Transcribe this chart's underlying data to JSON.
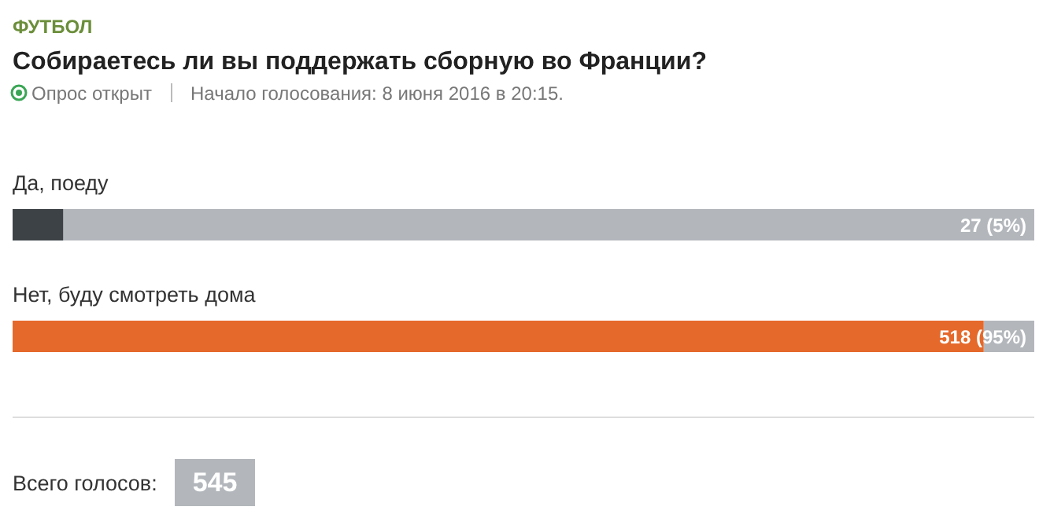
{
  "chart_data": {
    "type": "bar",
    "orientation": "horizontal",
    "title": "Собираетесь ли вы поддержать сборную во Франции?",
    "subtitle": "Опрос открыт",
    "annotations": [
      "ФУТБОЛ",
      "Начало голосования: 8 июня 2016 в 20:15.",
      "Всего голосов:",
      "545"
    ],
    "categories": [
      "Да, поеду",
      "Нет, буду смотреть дома"
    ],
    "values": [
      27,
      518
    ],
    "colors": [
      "#3d4246",
      "#e5692b"
    ],
    "value_labels": [
      "27 (5%)",
      "518 (95%)"
    ],
    "xlim": [
      0,
      545
    ],
    "tick_labels": false
  }
}
